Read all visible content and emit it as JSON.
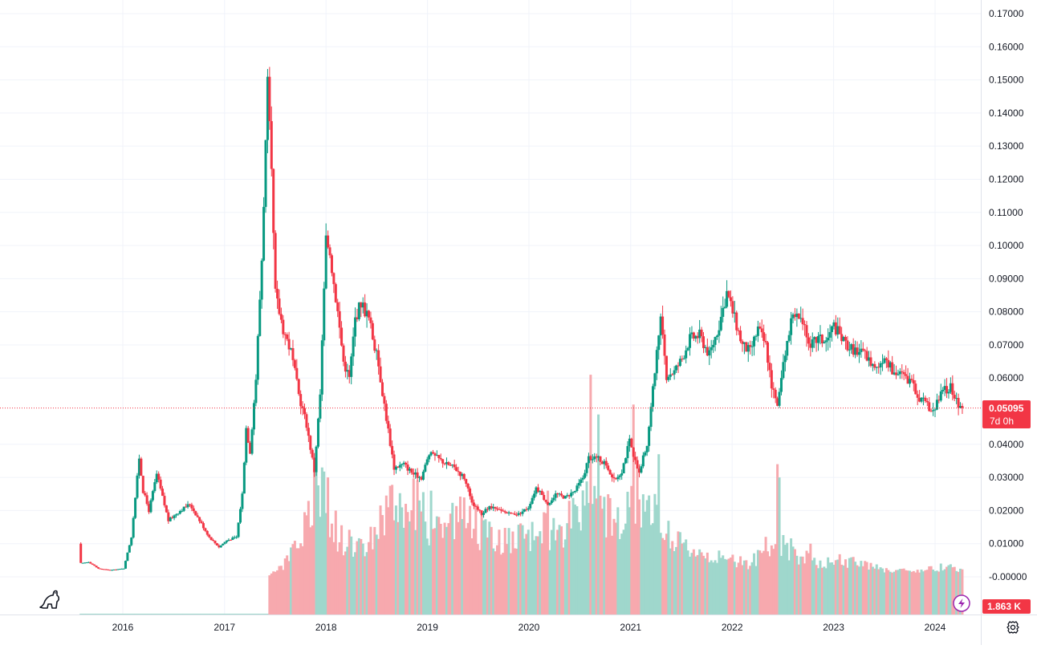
{
  "chart_data": {
    "type": "candlestick",
    "title": "",
    "interval": "1W",
    "x_range": [
      "2015-08-03",
      "2024-04-08"
    ],
    "y_range": [
      -0.002,
      0.171
    ],
    "y_ticks": [
      "0.17000",
      "0.16000",
      "0.15000",
      "0.14000",
      "0.13000",
      "0.12000",
      "0.11000",
      "0.10000",
      "0.09000",
      "0.08000",
      "0.07000",
      "0.06000",
      "0.04000",
      "0.03000",
      "0.02000",
      "0.01000",
      "-0.00000"
    ],
    "y_tick_values": [
      0.17,
      0.16,
      0.15,
      0.14,
      0.13,
      0.12,
      0.11,
      0.1,
      0.09,
      0.08,
      0.07,
      0.06,
      0.04,
      0.03,
      0.02,
      0.01,
      0.0
    ],
    "x_ticks": [
      "2016",
      "2017",
      "2018",
      "2019",
      "2020",
      "2021",
      "2022",
      "2023",
      "2024"
    ],
    "x_tick_dates": [
      "2016-01-01",
      "2017-01-01",
      "2018-01-01",
      "2019-01-01",
      "2020-01-01",
      "2021-01-01",
      "2022-01-01",
      "2023-01-01",
      "2024-01-01"
    ],
    "grid": true,
    "up_color": "#089981",
    "down_color": "#f23645",
    "price_line_color": "#f23645",
    "current_price": 0.05095,
    "current_price_label": "0.05095",
    "countdown_label": "7d 0h",
    "volume_label": "1.863 K",
    "price_path": [
      [
        "2015-08-03",
        0.01
      ],
      [
        "2015-08-10",
        0.004
      ],
      [
        "2015-09-07",
        0.0045
      ],
      [
        "2015-10-12",
        0.0025
      ],
      [
        "2015-11-23",
        0.002
      ],
      [
        "2016-01-11",
        0.0025
      ],
      [
        "2016-02-08",
        0.012
      ],
      [
        "2016-03-07",
        0.036
      ],
      [
        "2016-03-21",
        0.026
      ],
      [
        "2016-04-11",
        0.02
      ],
      [
        "2016-05-09",
        0.031
      ],
      [
        "2016-05-30",
        0.024
      ],
      [
        "2016-06-20",
        0.017
      ],
      [
        "2016-08-01",
        0.02
      ],
      [
        "2016-09-05",
        0.022
      ],
      [
        "2016-10-10",
        0.017
      ],
      [
        "2016-11-14",
        0.012
      ],
      [
        "2016-12-19",
        0.009
      ],
      [
        "2017-01-16",
        0.011
      ],
      [
        "2017-02-20",
        0.012
      ],
      [
        "2017-03-13",
        0.025
      ],
      [
        "2017-03-27",
        0.045
      ],
      [
        "2017-04-10",
        0.038
      ],
      [
        "2017-05-01",
        0.06
      ],
      [
        "2017-05-22",
        0.096
      ],
      [
        "2017-06-12",
        0.148
      ],
      [
        "2017-06-26",
        0.12
      ],
      [
        "2017-07-10",
        0.085
      ],
      [
        "2017-08-07",
        0.075
      ],
      [
        "2017-09-04",
        0.068
      ],
      [
        "2017-10-02",
        0.055
      ],
      [
        "2017-10-30",
        0.046
      ],
      [
        "2017-11-27",
        0.032
      ],
      [
        "2017-12-18",
        0.055
      ],
      [
        "2018-01-08",
        0.102
      ],
      [
        "2018-01-22",
        0.098
      ],
      [
        "2018-02-12",
        0.085
      ],
      [
        "2018-03-12",
        0.065
      ],
      [
        "2018-04-02",
        0.06
      ],
      [
        "2018-04-23",
        0.078
      ],
      [
        "2018-05-14",
        0.083
      ],
      [
        "2018-06-11",
        0.078
      ],
      [
        "2018-07-16",
        0.064
      ],
      [
        "2018-08-13",
        0.048
      ],
      [
        "2018-09-10",
        0.033
      ],
      [
        "2018-10-15",
        0.034
      ],
      [
        "2018-11-19",
        0.031
      ],
      [
        "2018-12-17",
        0.03
      ],
      [
        "2019-01-14",
        0.037
      ],
      [
        "2019-02-11",
        0.036
      ],
      [
        "2019-03-18",
        0.034
      ],
      [
        "2019-04-15",
        0.033
      ],
      [
        "2019-05-20",
        0.03
      ],
      [
        "2019-06-17",
        0.022
      ],
      [
        "2019-07-22",
        0.019
      ],
      [
        "2019-08-19",
        0.021
      ],
      [
        "2019-09-23",
        0.02
      ],
      [
        "2019-10-28",
        0.019
      ],
      [
        "2019-12-02",
        0.019
      ],
      [
        "2020-01-06",
        0.021
      ],
      [
        "2020-02-03",
        0.027
      ],
      [
        "2020-03-16",
        0.022
      ],
      [
        "2020-04-13",
        0.025
      ],
      [
        "2020-05-18",
        0.024
      ],
      [
        "2020-06-22",
        0.026
      ],
      [
        "2020-07-20",
        0.03
      ],
      [
        "2020-08-10",
        0.036
      ],
      [
        "2020-09-07",
        0.036
      ],
      [
        "2020-10-12",
        0.034
      ],
      [
        "2020-11-09",
        0.029
      ],
      [
        "2020-12-07",
        0.032
      ],
      [
        "2021-01-04",
        0.041
      ],
      [
        "2021-01-18",
        0.036
      ],
      [
        "2021-02-08",
        0.032
      ],
      [
        "2021-03-08",
        0.04
      ],
      [
        "2021-04-05",
        0.062
      ],
      [
        "2021-04-26",
        0.077
      ],
      [
        "2021-05-17",
        0.061
      ],
      [
        "2021-06-14",
        0.062
      ],
      [
        "2021-07-12",
        0.066
      ],
      [
        "2021-08-09",
        0.072
      ],
      [
        "2021-09-13",
        0.073
      ],
      [
        "2021-10-18",
        0.067
      ],
      [
        "2021-11-22",
        0.076
      ],
      [
        "2021-12-20",
        0.086
      ],
      [
        "2022-01-17",
        0.078
      ],
      [
        "2022-02-14",
        0.07
      ],
      [
        "2022-03-14",
        0.068
      ],
      [
        "2022-04-11",
        0.075
      ],
      [
        "2022-05-09",
        0.07
      ],
      [
        "2022-05-30",
        0.058
      ],
      [
        "2022-06-20",
        0.051
      ],
      [
        "2022-07-18",
        0.068
      ],
      [
        "2022-08-15",
        0.08
      ],
      [
        "2022-09-12",
        0.077
      ],
      [
        "2022-10-17",
        0.07
      ],
      [
        "2022-11-14",
        0.072
      ],
      [
        "2022-12-12",
        0.071
      ],
      [
        "2023-01-09",
        0.076
      ],
      [
        "2023-02-13",
        0.071
      ],
      [
        "2023-03-13",
        0.069
      ],
      [
        "2023-04-10",
        0.068
      ],
      [
        "2023-05-08",
        0.066
      ],
      [
        "2023-06-12",
        0.063
      ],
      [
        "2023-07-10",
        0.067
      ],
      [
        "2023-08-07",
        0.062
      ],
      [
        "2023-09-11",
        0.061
      ],
      [
        "2023-10-09",
        0.059
      ],
      [
        "2023-11-06",
        0.055
      ],
      [
        "2023-12-04",
        0.052
      ],
      [
        "2024-01-01",
        0.05
      ],
      [
        "2024-02-05",
        0.056
      ],
      [
        "2024-03-04",
        0.057
      ],
      [
        "2024-03-25",
        0.053
      ],
      [
        "2024-04-08",
        0.05095
      ]
    ],
    "volume_path": [
      [
        "2015-08-03",
        0.0
      ],
      [
        "2017-06-05",
        0.0
      ],
      [
        "2017-08-07",
        0.004
      ],
      [
        "2017-10-02",
        0.01
      ],
      [
        "2017-11-27",
        0.025
      ],
      [
        "2017-12-25",
        0.022
      ],
      [
        "2018-02-19",
        0.012
      ],
      [
        "2018-05-14",
        0.009
      ],
      [
        "2018-08-06",
        0.02
      ],
      [
        "2018-11-05",
        0.023
      ],
      [
        "2019-01-07",
        0.015
      ],
      [
        "2019-05-06",
        0.019
      ],
      [
        "2019-08-05",
        0.012
      ],
      [
        "2019-11-04",
        0.011
      ],
      [
        "2020-02-03",
        0.013
      ],
      [
        "2020-05-04",
        0.016
      ],
      [
        "2020-08-10",
        0.021
      ],
      [
        "2020-11-02",
        0.018
      ],
      [
        "2021-01-18",
        0.024
      ],
      [
        "2021-04-05",
        0.017
      ],
      [
        "2021-06-14",
        0.01
      ],
      [
        "2021-09-06",
        0.008
      ],
      [
        "2021-12-06",
        0.005
      ],
      [
        "2022-03-07",
        0.004
      ],
      [
        "2022-06-13",
        0.012
      ],
      [
        "2022-08-15",
        0.007
      ],
      [
        "2022-11-07",
        0.004
      ],
      [
        "2023-02-06",
        0.005
      ],
      [
        "2023-05-08",
        0.003
      ],
      [
        "2023-08-07",
        0.002
      ],
      [
        "2023-11-06",
        0.002
      ],
      [
        "2024-02-05",
        0.003
      ],
      [
        "2024-04-08",
        0.002
      ]
    ],
    "volume_spikes": [
      [
        "2017-12-18",
        0.033
      ],
      [
        "2018-01-08",
        0.03
      ],
      [
        "2018-02-05",
        0.02
      ],
      [
        "2018-08-13",
        0.021
      ],
      [
        "2019-01-14",
        0.026
      ],
      [
        "2020-03-09",
        0.026
      ],
      [
        "2020-08-10",
        0.061
      ],
      [
        "2020-09-07",
        0.049
      ],
      [
        "2021-01-11",
        0.052
      ],
      [
        "2021-04-12",
        0.037
      ],
      [
        "2022-06-13",
        0.034
      ],
      [
        "2022-06-20",
        0.03
      ],
      [
        "2022-10-10",
        0.01
      ],
      [
        "2023-03-13",
        0.006
      ],
      [
        "2024-01-22",
        0.004
      ]
    ]
  },
  "ui": {
    "logo_icon": "dinosaur-icon",
    "flash_icon": "lightning-icon",
    "settings_icon": "gear-icon"
  }
}
